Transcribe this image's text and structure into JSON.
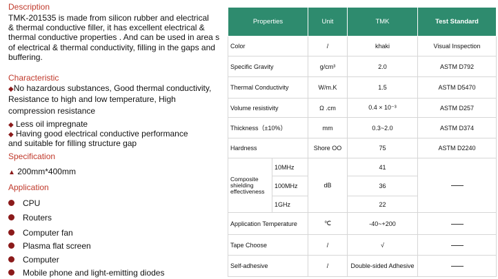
{
  "description": {
    "heading": "Description",
    "lines": [
      "TMK-201535 is made from silicon  rubber  and  electrical",
      "& thermal conductive  filler, it has excellent electrical &",
      "thermal conductive properties . And can be used in area s",
      "of electrical & thermal conductivity, filling in the gaps and",
      "buffering."
    ]
  },
  "characteristic": {
    "heading": "Characteristic",
    "item1": [
      "No hazardous substances,  Good thermal conductivity,",
      "Resistance to high and low temperature,  High",
      "compression resistance"
    ],
    "item2": "Less oil impregnate",
    "item3": [
      "Having  good electrical conductive performance",
      "and suitable for filling structure gap"
    ]
  },
  "specification": {
    "heading": "Specification",
    "value": "200mm*400mm"
  },
  "application": {
    "heading": "Application",
    "items": [
      "CPU",
      "Routers",
      "Computer fan",
      "Plasma flat screen",
      "Computer",
      "Mobile phone and light-emitting diodes"
    ]
  },
  "table": {
    "headers": [
      "Properties",
      "Unit",
      "TMK",
      "Test Standard"
    ],
    "rows": [
      {
        "prop": "Color",
        "unit": "/",
        "tmk": "khaki",
        "std": "Visual Inspection"
      },
      {
        "prop": "Specific Gravity",
        "unit": "g/cm³",
        "tmk": "2.0",
        "std": "ASTM D792"
      },
      {
        "prop": "Thermal Conductivity",
        "unit": "W/m.K",
        "tmk": "1.5",
        "std": "ASTM D5470"
      },
      {
        "prop": "Volume resistivity",
        "unit": "Ω .cm",
        "tmk": "0.4 × 10⁻³",
        "std": "ASTM D257"
      },
      {
        "prop": "Thickness（±10%）",
        "unit": "mm",
        "tmk": "0.3~2.0",
        "std": "ASTM D374"
      },
      {
        "prop": "Hardness",
        "unit": "Shore OO",
        "tmk": "75",
        "std": "ASTM D2240"
      }
    ],
    "shielding": {
      "prop": "Composite shielding effectiveness",
      "unit": "dB",
      "freqs": [
        "10MHz",
        "100MHz",
        "1GHz"
      ],
      "values": [
        "41",
        "36",
        "22"
      ]
    },
    "rows2": [
      {
        "prop": "Application Temperature",
        "unit": "℃",
        "tmk": "-40~+200"
      },
      {
        "prop": "Tape Choose",
        "unit": "/",
        "tmk": "√"
      },
      {
        "prop": "Self-adhesive",
        "unit": "/",
        "tmk": "Double-sided Adhesive"
      }
    ]
  }
}
